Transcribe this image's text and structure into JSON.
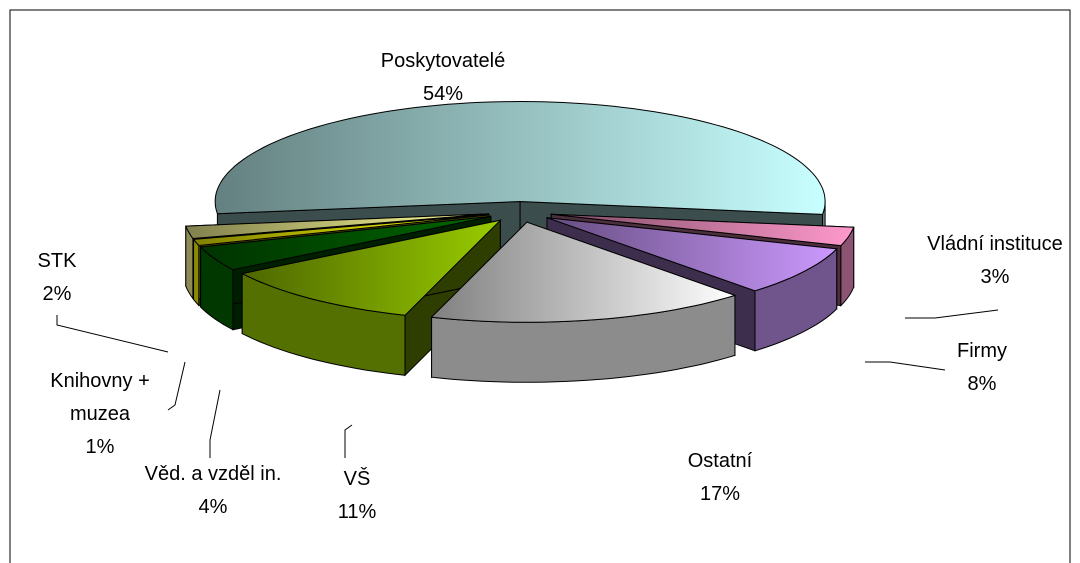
{
  "chart_data": {
    "type": "pie3d",
    "categories": [
      "Poskytovatelé",
      "Vládní instituce",
      "Firmy",
      "Ostatní",
      "VŠ",
      "Věd. a vzděl in.",
      "Knihovny + muzea",
      "STK"
    ],
    "values": [
      54,
      3,
      8,
      17,
      11,
      4,
      1,
      2
    ],
    "value_labels": [
      "54%",
      "3%",
      "8%",
      "17%",
      "11%",
      "4%",
      "1%",
      "2%"
    ],
    "colors": [
      "#c8ffff",
      "#ff99cc",
      "#cc99ff",
      "#ffffff",
      "#99cc00",
      "#006600",
      "#ffff00",
      "#ffff99"
    ]
  }
}
